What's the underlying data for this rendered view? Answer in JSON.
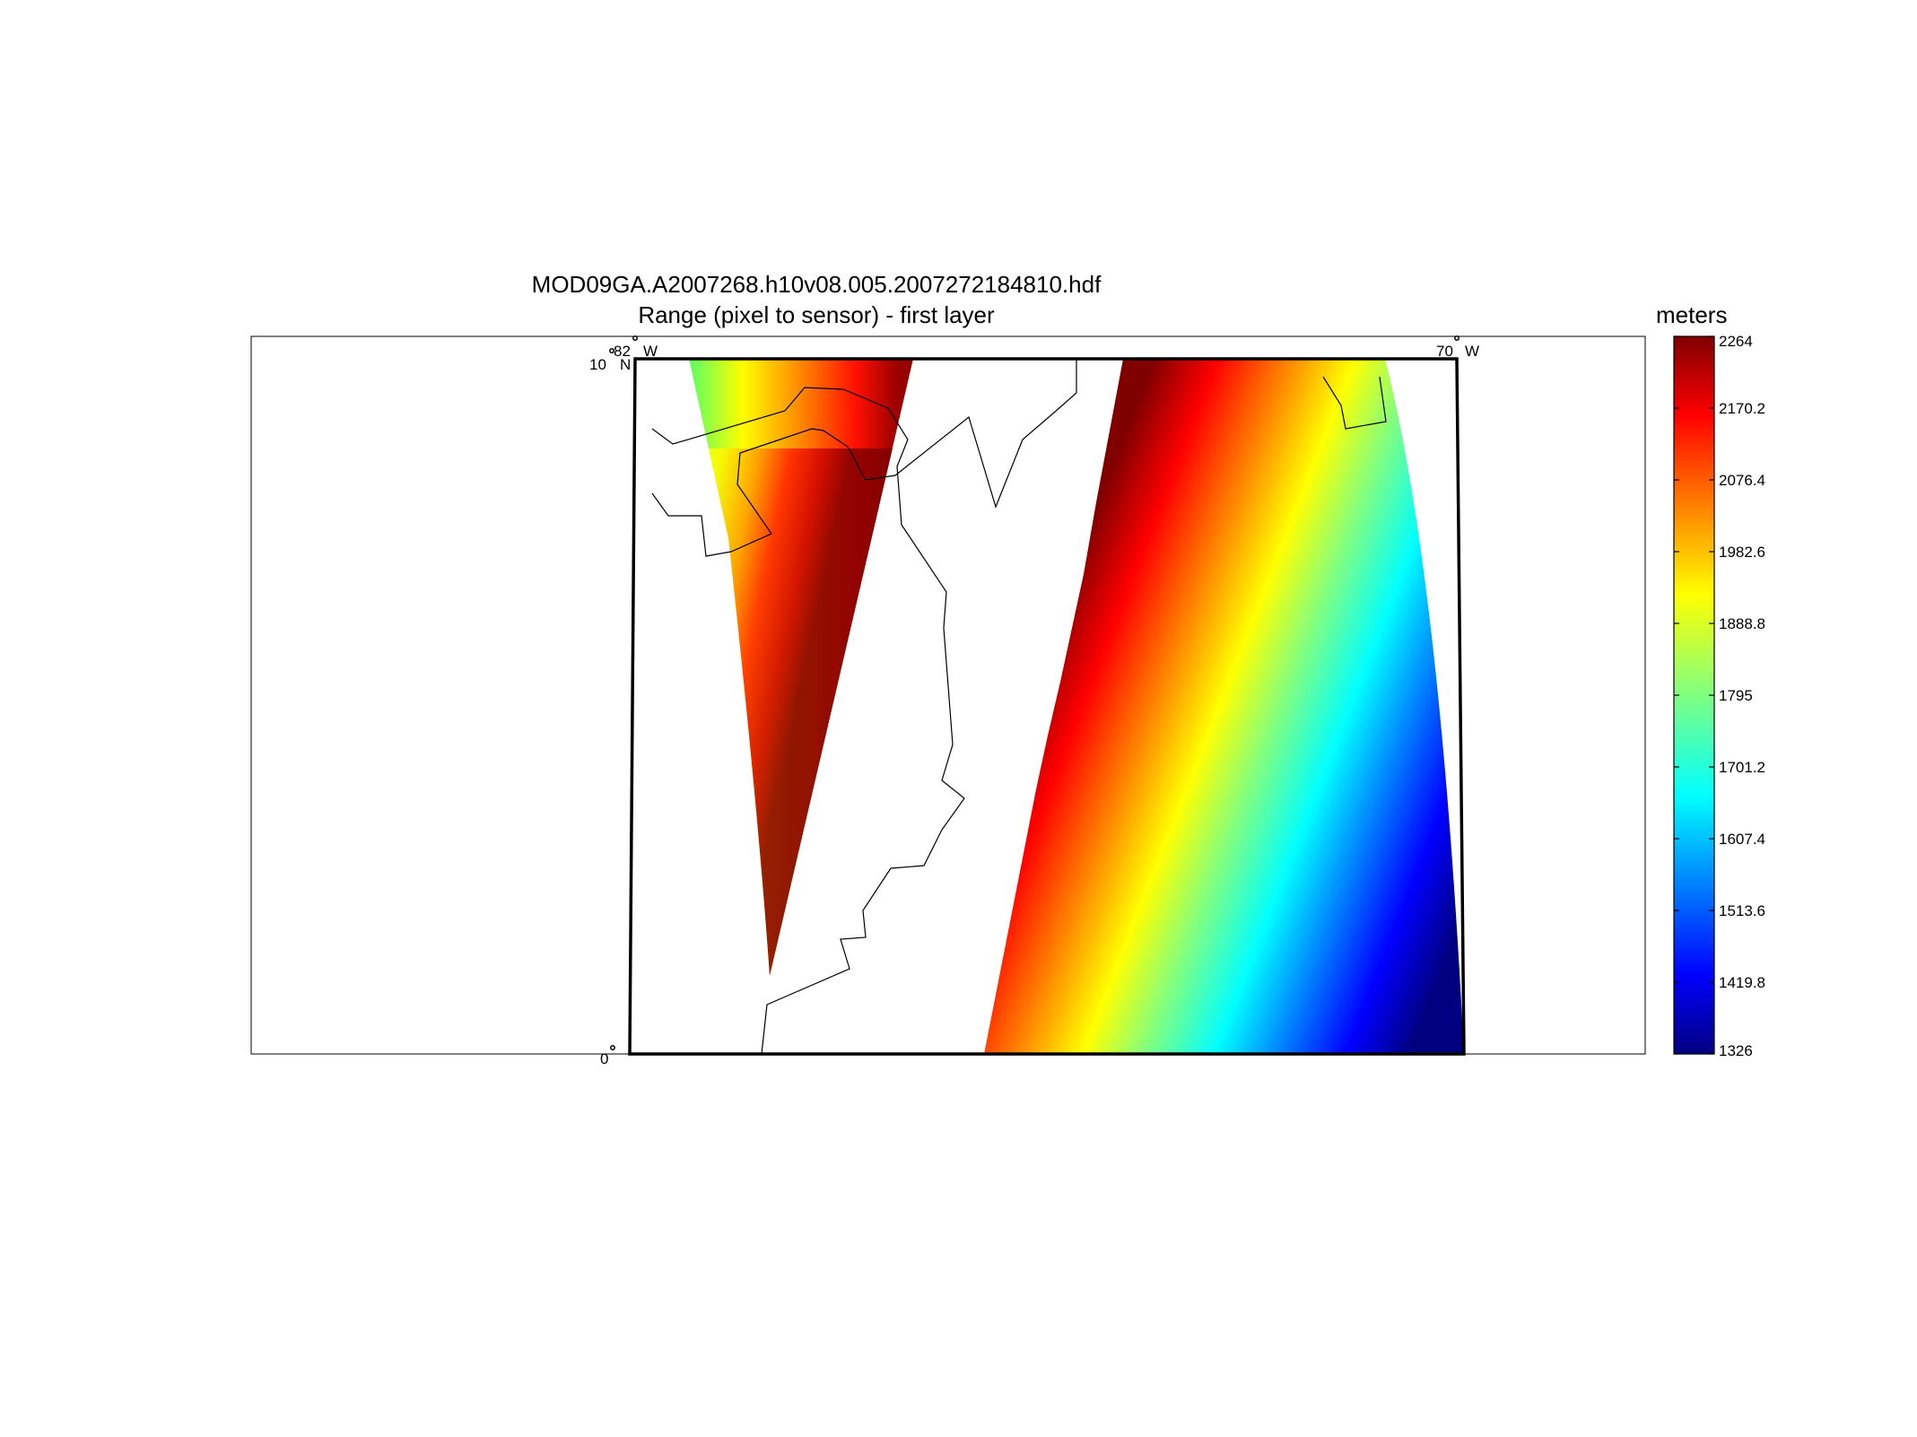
{
  "figure": {
    "title_line1": "MOD09GA.A2007268.h10v08.005.2007272184810.hdf",
    "title_line2": "Range (pixel to sensor) - first layer"
  },
  "map": {
    "lon_labels": [
      {
        "value": "82",
        "hemisphere": "W"
      },
      {
        "value": "70",
        "hemisphere": "W"
      }
    ],
    "lat_labels": [
      {
        "value": "10",
        "hemisphere": "N"
      },
      {
        "value": "0",
        "hemisphere": ""
      }
    ],
    "frame_color": "#000000",
    "coastline_color": "#000000"
  },
  "colorbar": {
    "unit": "meters",
    "colormap": "jet",
    "min": 1326,
    "max": 2264,
    "ticks": [
      "2264",
      "2170.2",
      "2076.4",
      "1982.6",
      "1888.8",
      "1795",
      "1701.2",
      "1607.4",
      "1513.6",
      "1419.8",
      "1326"
    ]
  }
}
